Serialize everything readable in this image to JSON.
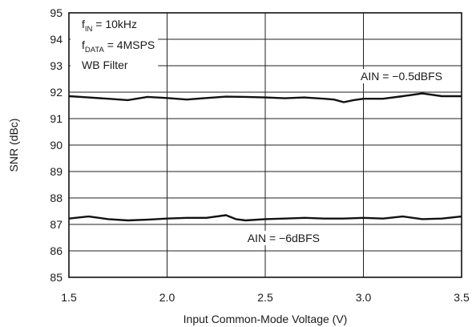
{
  "chart_data": {
    "type": "line",
    "title": "",
    "xlabel": "Input Common-Mode Voltage (V)",
    "ylabel": "SNR (dBc)",
    "xlim": [
      1.5,
      3.5
    ],
    "ylim": [
      85,
      95
    ],
    "x_ticks": [
      "1.5",
      "2.0",
      "2.5",
      "3.0",
      "3.5"
    ],
    "y_ticks": [
      "85",
      "86",
      "87",
      "88",
      "89",
      "90",
      "91",
      "92",
      "93",
      "94",
      "95"
    ],
    "grid": true,
    "conditions": [
      {
        "main": "f",
        "sub": "IN",
        "rest": " = 10kHz"
      },
      {
        "main": "f",
        "sub": "DATA",
        "rest": " = 4MSPS"
      },
      {
        "main": "WB Filter",
        "sub": "",
        "rest": ""
      }
    ],
    "series": [
      {
        "name": "AIN = −0.5dBFS",
        "color": "#111111",
        "x": [
          1.5,
          1.6,
          1.7,
          1.8,
          1.9,
          2.0,
          2.1,
          2.2,
          2.3,
          2.4,
          2.5,
          2.6,
          2.7,
          2.8,
          2.85,
          2.9,
          2.95,
          3.0,
          3.1,
          3.2,
          3.3,
          3.4,
          3.5
        ],
        "y": [
          91.85,
          91.8,
          91.75,
          91.7,
          91.82,
          91.78,
          91.72,
          91.78,
          91.83,
          91.82,
          91.8,
          91.77,
          91.8,
          91.75,
          91.72,
          91.62,
          91.7,
          91.75,
          91.75,
          91.85,
          91.95,
          91.85,
          91.85
        ]
      },
      {
        "name": "AIN = −6dBFS",
        "color": "#111111",
        "x": [
          1.5,
          1.6,
          1.7,
          1.8,
          1.9,
          2.0,
          2.1,
          2.2,
          2.3,
          2.35,
          2.4,
          2.5,
          2.6,
          2.7,
          2.8,
          2.9,
          3.0,
          3.1,
          3.2,
          3.3,
          3.4,
          3.5
        ],
        "y": [
          87.22,
          87.3,
          87.2,
          87.15,
          87.18,
          87.22,
          87.25,
          87.25,
          87.35,
          87.2,
          87.15,
          87.2,
          87.22,
          87.25,
          87.22,
          87.22,
          87.25,
          87.22,
          87.3,
          87.2,
          87.22,
          87.3
        ]
      }
    ]
  }
}
